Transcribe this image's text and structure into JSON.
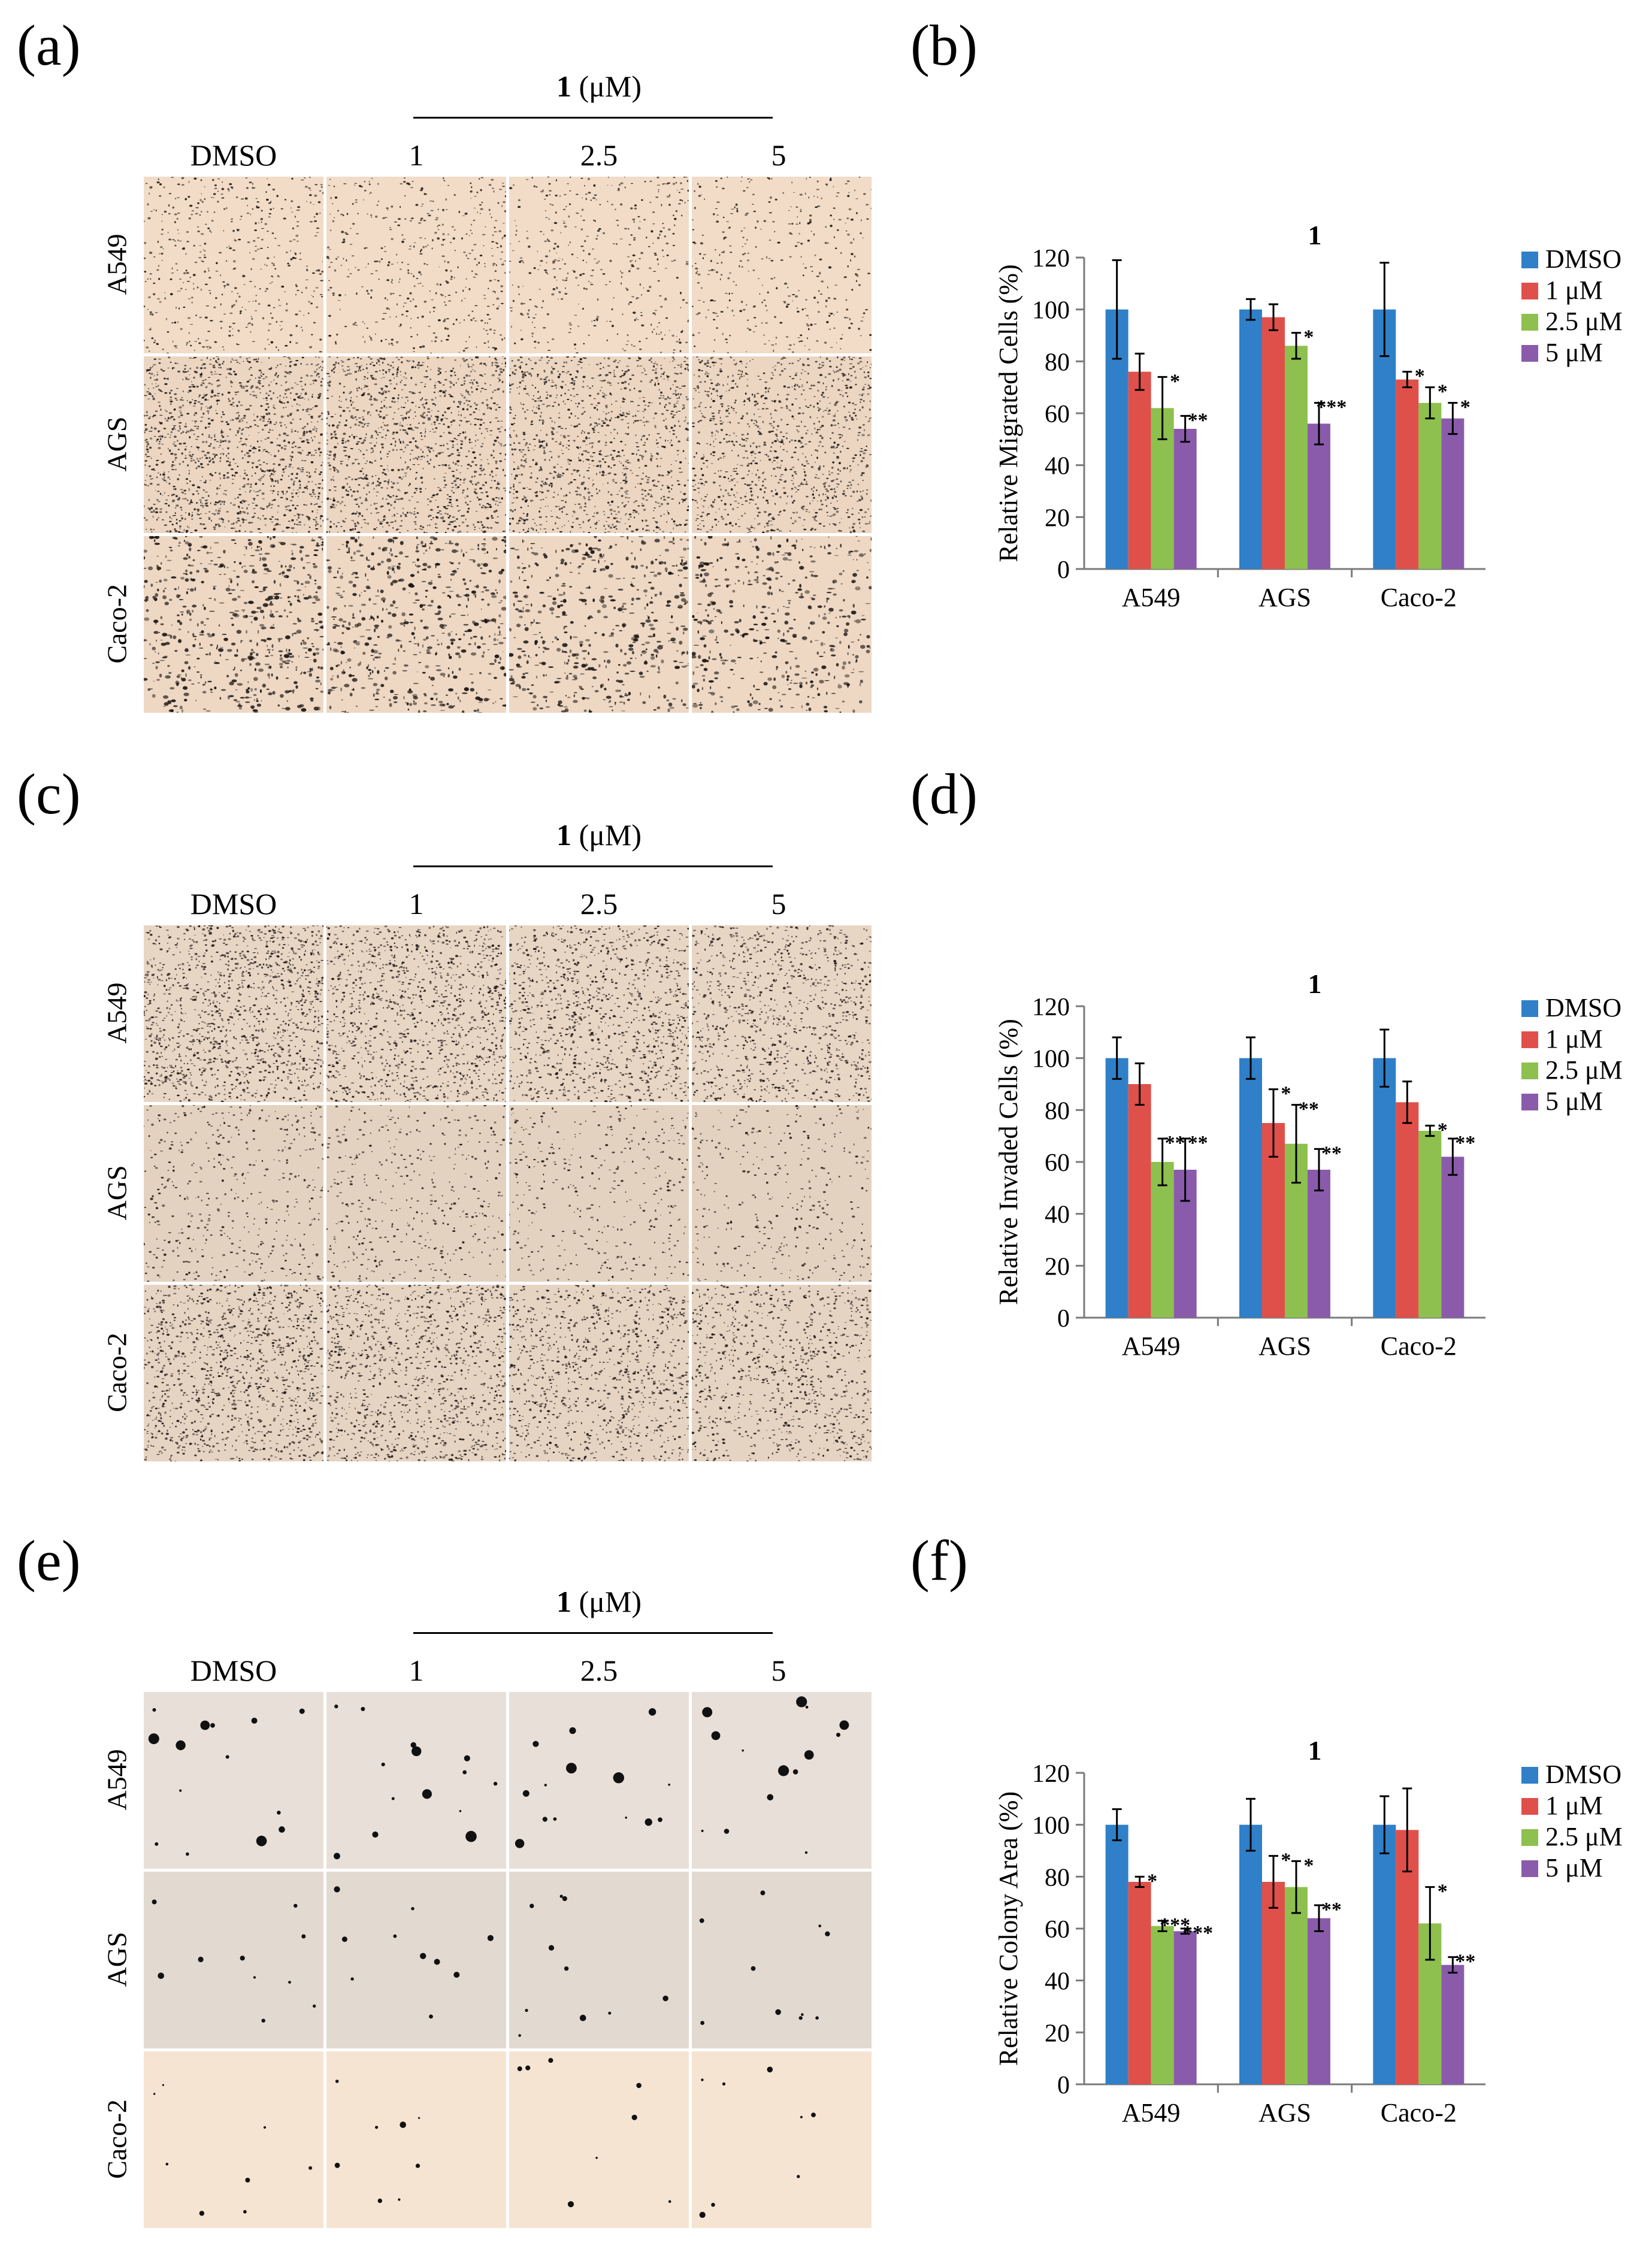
{
  "panel_labels": [
    "(a)",
    "(b)",
    "(c)",
    "(d)",
    "(e)",
    "(f)"
  ],
  "image_panels": [
    {
      "compound": "1",
      "unit": "(μM)",
      "columns": [
        "DMSO",
        "1",
        "2.5",
        "5"
      ],
      "rows": [
        "A549",
        "AGS",
        "Caco-2"
      ]
    },
    {
      "compound": "1",
      "unit": "(μM)",
      "columns": [
        "DMSO",
        "1",
        "2.5",
        "5"
      ],
      "rows": [
        "A549",
        "AGS",
        "Caco-2"
      ]
    },
    {
      "compound": "1",
      "unit": "(μM)",
      "columns": [
        "DMSO",
        "1",
        "2.5",
        "5"
      ],
      "rows": [
        "A549",
        "AGS",
        "Caco-2"
      ]
    }
  ],
  "colors": {
    "series": [
      "#2f80c8",
      "#e0504a",
      "#8dc04e",
      "#8a5bab"
    ],
    "panel_a_tiles": [
      "#f2dcc7",
      "#ecd6c2",
      "#eed8c4"
    ],
    "panel_c_tiles": [
      "#e8d6c5",
      "#e4d2c0",
      "#e6d4c3"
    ],
    "panel_e_tiles": [
      "#e8e0d8",
      "#e2d9d0",
      "#f6e4d2"
    ]
  },
  "chart_data": [
    {
      "type": "bar",
      "title": "1",
      "ylabel": "Relative Migrated Cells (%)",
      "xlabel": "",
      "categories": [
        "A549",
        "AGS",
        "Caco-2"
      ],
      "ylim": [
        0,
        120
      ],
      "yticks": [
        "0",
        "20",
        "40",
        "60",
        "80",
        "100",
        "120"
      ],
      "series": [
        {
          "name": "DMSO",
          "values": [
            100,
            100,
            100
          ],
          "errors": [
            19,
            4,
            18
          ],
          "sig": [
            "",
            "",
            ""
          ]
        },
        {
          "name": "1 μM",
          "values": [
            76,
            97,
            73
          ],
          "errors": [
            7,
            5,
            3
          ],
          "sig": [
            "",
            "",
            "*"
          ]
        },
        {
          "name": "2.5 μM",
          "values": [
            62,
            86,
            64
          ],
          "errors": [
            12,
            5,
            6
          ],
          "sig": [
            "*",
            "*",
            "*"
          ]
        },
        {
          "name": "5 μM",
          "values": [
            54,
            56,
            58
          ],
          "errors": [
            5,
            8,
            6
          ],
          "sig": [
            "**",
            "***",
            "*"
          ]
        }
      ],
      "legend": "top-right"
    },
    {
      "type": "bar",
      "title": "1",
      "ylabel": "Relative Invaded Cells (%)",
      "xlabel": "",
      "categories": [
        "A549",
        "AGS",
        "Caco-2"
      ],
      "ylim": [
        0,
        120
      ],
      "yticks": [
        "0",
        "20",
        "40",
        "60",
        "80",
        "100",
        "120"
      ],
      "series": [
        {
          "name": "DMSO",
          "values": [
            100,
            100,
            100
          ],
          "errors": [
            8,
            8,
            11
          ],
          "sig": [
            "",
            "",
            ""
          ]
        },
        {
          "name": "1 μM",
          "values": [
            90,
            75,
            83
          ],
          "errors": [
            8,
            13,
            8
          ],
          "sig": [
            "",
            "*",
            ""
          ]
        },
        {
          "name": "2.5 μM",
          "values": [
            60,
            67,
            72
          ],
          "errors": [
            9,
            15,
            2
          ],
          "sig": [
            "**",
            "**",
            "*"
          ]
        },
        {
          "name": "5 μM",
          "values": [
            57,
            57,
            62
          ],
          "errors": [
            12,
            8,
            7
          ],
          "sig": [
            "**",
            "**",
            "**"
          ]
        }
      ],
      "legend": "top-right"
    },
    {
      "type": "bar",
      "title": "1",
      "ylabel": "Relative Colony Area (%)",
      "xlabel": "",
      "categories": [
        "A549",
        "AGS",
        "Caco-2"
      ],
      "ylim": [
        0,
        120
      ],
      "yticks": [
        "0",
        "20",
        "40",
        "60",
        "80",
        "100",
        "120"
      ],
      "series": [
        {
          "name": "DMSO",
          "values": [
            100,
            100,
            100
          ],
          "errors": [
            6,
            10,
            11
          ],
          "sig": [
            "",
            "",
            ""
          ]
        },
        {
          "name": "1 μM",
          "values": [
            78,
            78,
            98
          ],
          "errors": [
            2,
            10,
            16
          ],
          "sig": [
            "*",
            "*",
            ""
          ]
        },
        {
          "name": "2.5 μM",
          "values": [
            61,
            76,
            62
          ],
          "errors": [
            2,
            10,
            14
          ],
          "sig": [
            "***",
            "*",
            "*"
          ]
        },
        {
          "name": "5 μM",
          "values": [
            59,
            64,
            46
          ],
          "errors": [
            1,
            5,
            3
          ],
          "sig": [
            "***",
            "**",
            "**"
          ]
        }
      ],
      "legend": "top-right"
    }
  ]
}
